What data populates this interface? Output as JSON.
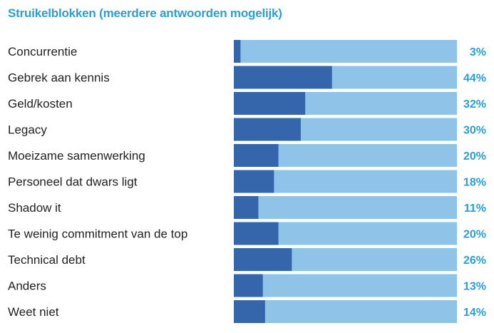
{
  "chart_data": {
    "type": "bar",
    "orientation": "horizontal",
    "stacked_to_full": true,
    "title": "Struikelblokken (meerdere antwoorden mogelijk)",
    "xlim": [
      0,
      100
    ],
    "unit": "%",
    "categories": [
      "Concurrentie",
      "Gebrek aan kennis",
      "Geld/kosten",
      "Legacy",
      "Moeizame samenwerking",
      "Personeel dat dwars ligt",
      "Shadow it",
      "Te weinig commitment van de top",
      "Technical debt",
      "Anders",
      "Weet niet"
    ],
    "values": [
      3,
      44,
      32,
      30,
      20,
      18,
      11,
      20,
      26,
      13,
      14
    ],
    "value_labels": [
      "3%",
      "44%",
      "32%",
      "30%",
      "20%",
      "18%",
      "11%",
      "20%",
      "26%",
      "13%",
      "14%"
    ],
    "colors": {
      "value": "#3565ab",
      "remainder": "#8fc4e8",
      "title": "#2a9fd0",
      "value_label": "#2a9fd0",
      "category_label": "#222222"
    },
    "grid": false,
    "legend": "none"
  }
}
